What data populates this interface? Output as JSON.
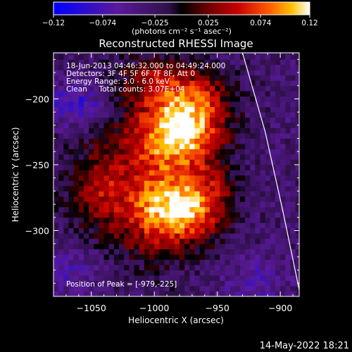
{
  "chart_data": {
    "type": "heatmap",
    "title": "Reconstructed RHESSI Image",
    "xlabel": "Heliocentric X (arcsec)",
    "ylabel": "Heliocentric Y (arcsec)",
    "xlim": [
      -1080,
      -885
    ],
    "ylim": [
      -350,
      -165
    ],
    "x_ticks": [
      -1050,
      -1000,
      -950,
      -900
    ],
    "x_tick_labels": [
      "−1050",
      "−1000",
      "−950",
      "−900"
    ],
    "y_ticks": [
      -200,
      -250,
      -300
    ],
    "y_tick_labels": [
      "−200",
      "−250",
      "−300"
    ],
    "colorbar": {
      "min": -0.12,
      "max": 0.12,
      "ticks": [
        -0.12,
        -0.074,
        -0.025,
        0.025,
        0.074,
        0.12
      ],
      "tick_labels": [
        "−0.12",
        "−0.074",
        "−0.025",
        "0.025",
        "0.074",
        "0.12"
      ],
      "units_label": "(photons cm⁻² s⁻¹ asec⁻²)",
      "colormap": [
        "#0000ff",
        "#5a1a9a",
        "#30104a",
        "#000000",
        "#6a0000",
        "#c80000",
        "#ff5a00",
        "#ffc000",
        "#ffffff"
      ]
    },
    "annotations": [
      "18-Jun-2013 04:46:32.000 to 04:49:24.000",
      "Detectors: 3F 4F 5F 6F 7F 8F, Att 0",
      "Energy Range: 3.0 - 6.0 keV",
      "Clean     Total counts: 3.07E+04"
    ],
    "peak_label": "Position of Peak = [-979,-225]",
    "peak": [
      -979,
      -225
    ],
    "sources": [
      {
        "x": -980,
        "y": -225,
        "sx": 22,
        "sy": 20,
        "amp": 0.12
      },
      {
        "x": -985,
        "y": -285,
        "sx": 22,
        "sy": 18,
        "amp": 0.115
      },
      {
        "x": -1015,
        "y": -260,
        "sx": 35,
        "sy": 45,
        "amp": 0.06
      },
      {
        "x": -965,
        "y": -200,
        "sx": 20,
        "sy": 18,
        "amp": 0.06
      },
      {
        "x": -1000,
        "y": -185,
        "sx": 18,
        "sy": 12,
        "amp": 0.045
      },
      {
        "x": -955,
        "y": -275,
        "sx": 14,
        "sy": 18,
        "amp": 0.045
      },
      {
        "x": -1045,
        "y": -270,
        "sx": 14,
        "sy": 16,
        "amp": 0.035
      }
    ],
    "negative_regions": [
      {
        "x": -1060,
        "y": -205,
        "sx": 18,
        "sy": 12,
        "amp": -0.06
      },
      {
        "x": -1065,
        "y": -330,
        "sx": 20,
        "sy": 15,
        "amp": -0.035
      },
      {
        "x": -920,
        "y": -340,
        "sx": 16,
        "sy": 12,
        "amp": -0.035
      }
    ],
    "background_level": -0.032,
    "limb_curve": [
      [
        -930,
        -165
      ],
      [
        -912,
        -225
      ],
      [
        -898,
        -285
      ],
      [
        -885,
        -345
      ]
    ]
  },
  "footer": {
    "date": "14-May-2022 18:21"
  }
}
